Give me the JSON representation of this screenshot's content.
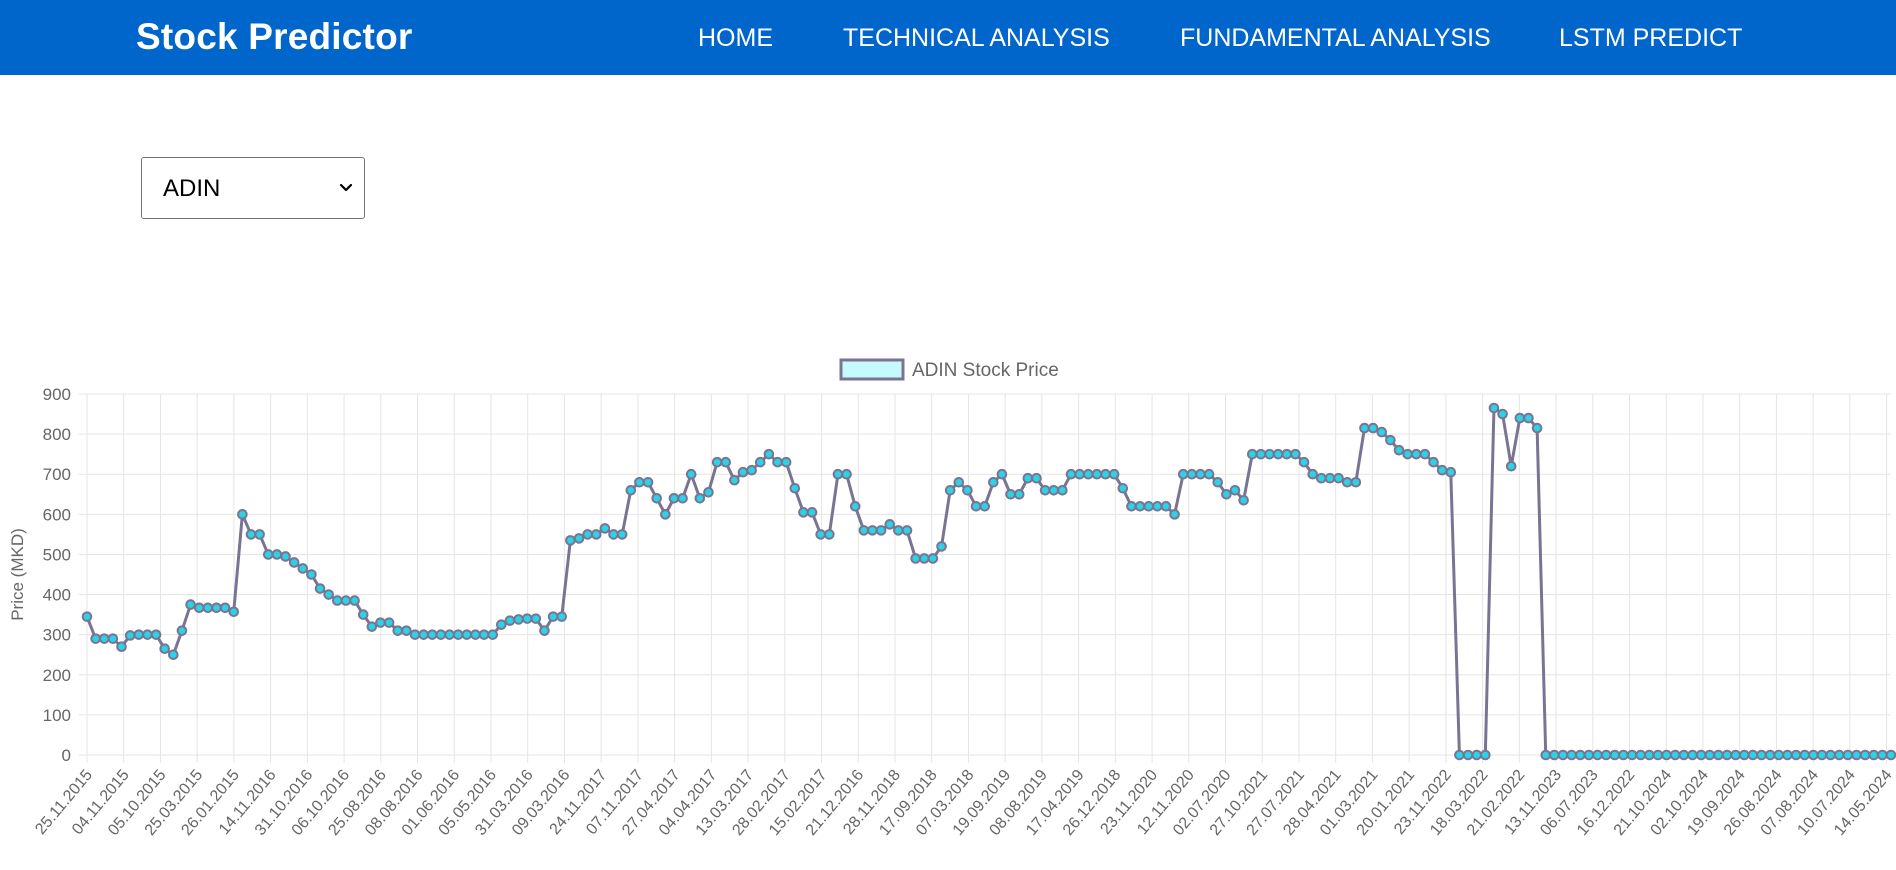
{
  "app": {
    "brand": "Stock Predictor"
  },
  "nav": {
    "items": [
      {
        "label": "HOME"
      },
      {
        "label": "TECHNICAL ANALYSIS"
      },
      {
        "label": "FUNDAMENTAL ANALYSIS"
      },
      {
        "label": "LSTM PREDICT"
      }
    ]
  },
  "stock_select": {
    "selected": "ADIN",
    "icon": "chevron-down-icon"
  },
  "colors": {
    "navbar": "#0066cc",
    "line": "#7a7493",
    "point_fill": "#2bd3e6",
    "legend_fill": "#c6fafd",
    "grid": "#e5e5e5"
  },
  "chart_data": {
    "type": "line",
    "title": "",
    "legend": "top-center",
    "grid": true,
    "xlabel": "",
    "ylabel": "Price (MKD)",
    "ylim": [
      0,
      900
    ],
    "yticks": [
      0,
      100,
      200,
      300,
      400,
      500,
      600,
      700,
      800,
      900
    ],
    "xtick_labels": [
      "25.11.2015",
      "04.11.2015",
      "05.10.2015",
      "25.03.2015",
      "26.01.2015",
      "14.11.2016",
      "31.10.2016",
      "06.10.2016",
      "25.08.2016",
      "08.08.2016",
      "01.06.2016",
      "05.05.2016",
      "31.03.2016",
      "09.03.2016",
      "24.11.2017",
      "07.11.2017",
      "27.04.2017",
      "04.04.2017",
      "13.03.2017",
      "28.02.2017",
      "15.02.2017",
      "21.12.2016",
      "28.11.2018",
      "17.09.2018",
      "07.03.2018",
      "19.09.2019",
      "08.08.2019",
      "17.04.2019",
      "26.12.2018",
      "23.11.2020",
      "12.11.2020",
      "02.07.2020",
      "27.10.2021",
      "27.07.2021",
      "28.04.2021",
      "01.03.2021",
      "20.01.2021",
      "23.11.2022",
      "18.03.2022",
      "21.02.2022",
      "13.11.2023",
      "06.07.2023",
      "16.12.2022",
      "21.10.2024",
      "02.10.2024",
      "19.09.2024",
      "26.08.2024",
      "07.08.2024",
      "10.07.2024",
      "14.05.2024"
    ],
    "series": [
      {
        "name": "ADIN Stock Price",
        "values": [
          345,
          290,
          290,
          290,
          270,
          298,
          300,
          300,
          300,
          265,
          250,
          310,
          375,
          367,
          367,
          367,
          367,
          357,
          600,
          550,
          550,
          500,
          500,
          495,
          480,
          465,
          450,
          415,
          400,
          385,
          385,
          385,
          350,
          320,
          330,
          330,
          310,
          310,
          300,
          300,
          300,
          300,
          300,
          300,
          300,
          300,
          300,
          300,
          325,
          335,
          338,
          340,
          340,
          310,
          345,
          345,
          535,
          540,
          550,
          550,
          565,
          550,
          550,
          660,
          680,
          680,
          640,
          600,
          640,
          640,
          700,
          640,
          655,
          730,
          730,
          685,
          705,
          710,
          730,
          750,
          730,
          730,
          665,
          605,
          605,
          550,
          550,
          700,
          700,
          620,
          560,
          560,
          560,
          575,
          560,
          560,
          490,
          490,
          490,
          520,
          660,
          680,
          660,
          620,
          620,
          680,
          700,
          650,
          650,
          690,
          690,
          660,
          660,
          660,
          700,
          700,
          700,
          700,
          700,
          700,
          665,
          620,
          620,
          620,
          620,
          620,
          600,
          700,
          700,
          700,
          700,
          680,
          650,
          660,
          635,
          750,
          750,
          750,
          750,
          750,
          750,
          730,
          700,
          690,
          690,
          690,
          680,
          680,
          815,
          815,
          805,
          785,
          760,
          750,
          750,
          750,
          730,
          710,
          705,
          0,
          0,
          0,
          0,
          865,
          850,
          720,
          840,
          840,
          815,
          0,
          0,
          0,
          0,
          0,
          0,
          0,
          0,
          0,
          0,
          0,
          0,
          0,
          0,
          0,
          0,
          0,
          0,
          0,
          0,
          0,
          0,
          0,
          0,
          0,
          0,
          0,
          0,
          0,
          0,
          0,
          0,
          0,
          0,
          0,
          0,
          0,
          0,
          0,
          0,
          0
        ]
      }
    ]
  }
}
